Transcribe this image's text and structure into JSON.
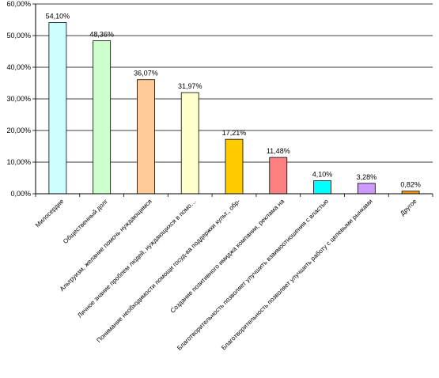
{
  "chart_data": {
    "type": "bar",
    "title": "",
    "xlabel": "",
    "ylabel": "",
    "ylim": [
      0,
      60
    ],
    "y_ticks": [
      "0,00%",
      "10,00%",
      "20,00%",
      "30,00%",
      "40,00%",
      "50,00%",
      "60,00%"
    ],
    "grid": true,
    "legend": "none",
    "categories": [
      "Милосердие",
      "Общественный долг",
      "Альтруизм, желание помочь нуждающимся",
      "Личное знание проблем людей, нуждающихся в помо…",
      "Понимание необходимости помощи госуд-ва поддержки культ., обр-",
      "Создание позитивного имиджа компании, реклама на",
      "Благотворительность позволяет улучшить взаимоотношения с властью",
      "Благотворительность позволяет улучшить работу с целевыми рынками",
      "Другое"
    ],
    "values": [
      54.1,
      48.36,
      36.07,
      31.97,
      17.21,
      11.48,
      4.1,
      3.28,
      0.82
    ],
    "value_labels": [
      "54,10%",
      "48,36%",
      "36,07%",
      "31,97%",
      "17,21%",
      "11,48%",
      "4,10%",
      "3,28%",
      "0,82%"
    ],
    "colors": [
      "#ccffff",
      "#ccffcc",
      "#ffcc99",
      "#ffffcc",
      "#ffcc00",
      "#ff8080",
      "#00ffff",
      "#cc99ff",
      "#ff9900"
    ]
  }
}
